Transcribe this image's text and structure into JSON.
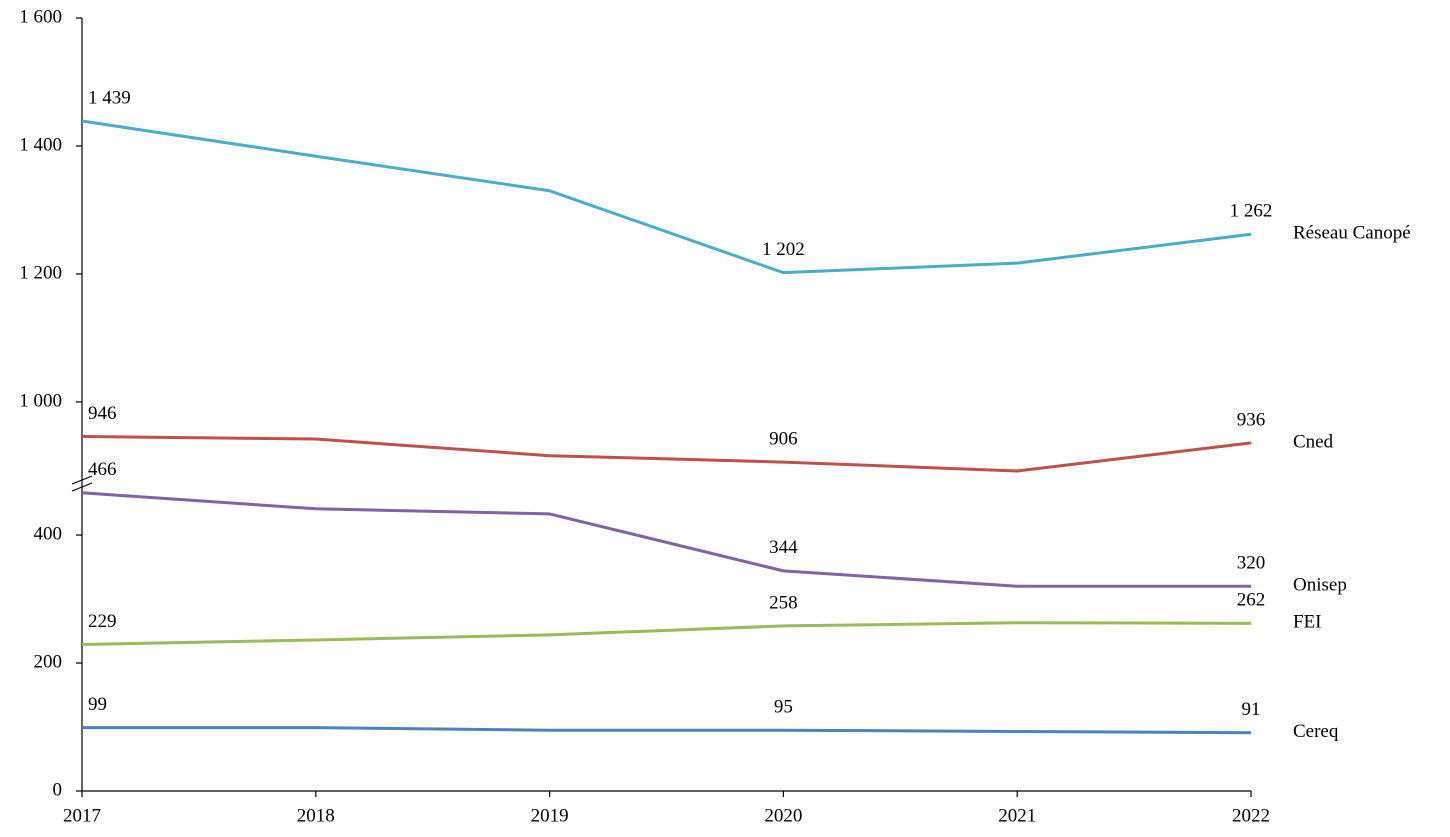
{
  "chart_data": {
    "type": "line",
    "categories": [
      "2017",
      "2018",
      "2019",
      "2020",
      "2021",
      "2022"
    ],
    "ylim": [
      0,
      1600
    ],
    "axis_break": {
      "from": 480,
      "to": 872
    },
    "yticks": [
      0,
      200,
      400,
      {
        "value": 1000,
        "label": "1 000"
      },
      {
        "value": 1200,
        "label": "1 200"
      },
      {
        "value": 1400,
        "label": "1 400"
      },
      {
        "value": 1600,
        "label": "1 600"
      }
    ],
    "series": [
      {
        "name": "Réseau Canopé",
        "color": "#4bacc6",
        "values": [
          1439,
          1384,
          1330,
          1202,
          1217,
          1262
        ],
        "value_labels": [
          "1 439",
          null,
          null,
          "1 202",
          null,
          "1 262"
        ]
      },
      {
        "name": "Cned",
        "color": "#c0504d",
        "values": [
          946,
          942,
          916,
          906,
          892,
          936
        ],
        "value_labels": [
          "946",
          null,
          null,
          "906",
          null,
          "936"
        ]
      },
      {
        "name": "Onisep",
        "color": "#8064a2",
        "values": [
          466,
          441,
          433,
          344,
          320,
          320
        ],
        "value_labels": [
          "466",
          null,
          null,
          "344",
          null,
          "320"
        ]
      },
      {
        "name": "FEI",
        "color": "#9bbb59",
        "values": [
          229,
          236,
          244,
          258,
          263,
          262
        ],
        "value_labels": [
          "229",
          null,
          null,
          "258",
          null,
          "262"
        ]
      },
      {
        "name": "Cereq",
        "color": "#4f81bd",
        "values": [
          99,
          99,
          95,
          95,
          93,
          91
        ],
        "value_labels": [
          "99",
          null,
          null,
          "95",
          null,
          "91"
        ]
      }
    ]
  }
}
